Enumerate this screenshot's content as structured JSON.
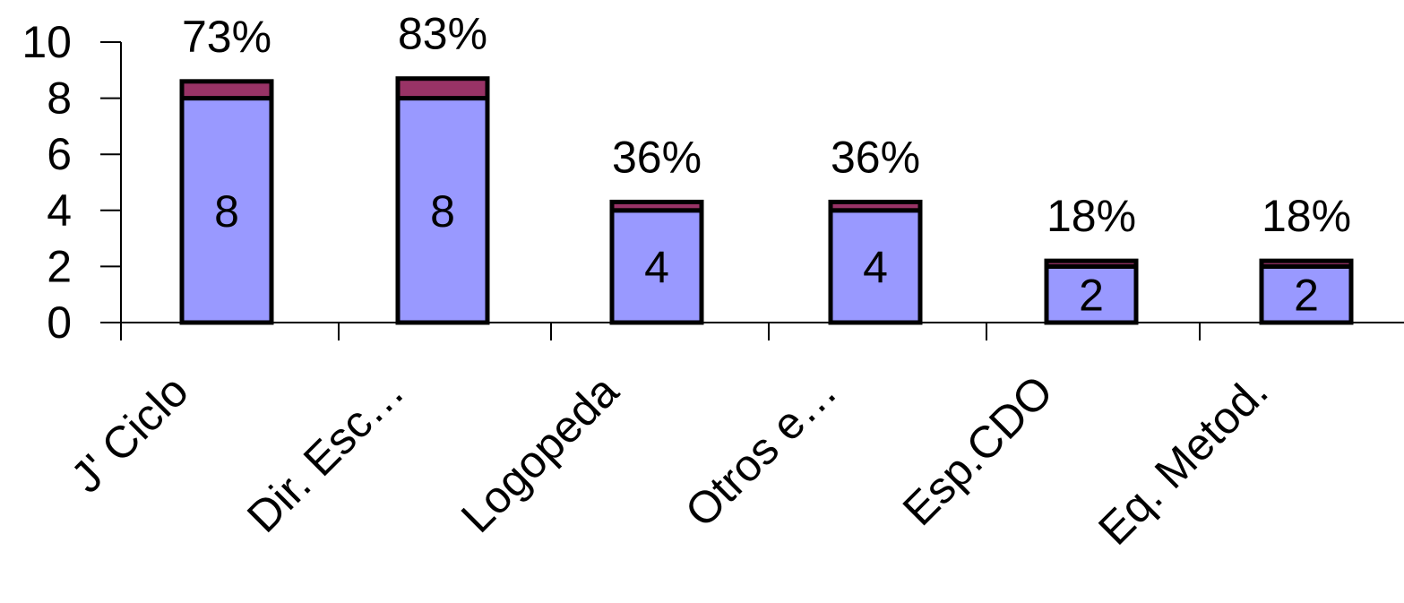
{
  "chart_data": {
    "type": "bar",
    "stacked": true,
    "categories": [
      "J' Ciclo",
      "Dir. Esc…",
      "Logopeda",
      "Otros e…",
      "Esp.CDO",
      "Eq. Metod."
    ],
    "series": [
      {
        "values": [
          8,
          8,
          4,
          4,
          2,
          2
        ],
        "color": "#9999ff",
        "show_value_labels": true
      },
      {
        "values": [
          0.6,
          0.7,
          0.3,
          0.3,
          0.2,
          0.2
        ],
        "color": "#993366"
      }
    ],
    "percent_labels": [
      "73%",
      "83%",
      "36%",
      "36%",
      "18%",
      "18%"
    ],
    "ylim": [
      0,
      10
    ],
    "yticks": [
      0,
      2,
      4,
      6,
      8,
      10
    ],
    "grid": false,
    "legend": "none"
  }
}
